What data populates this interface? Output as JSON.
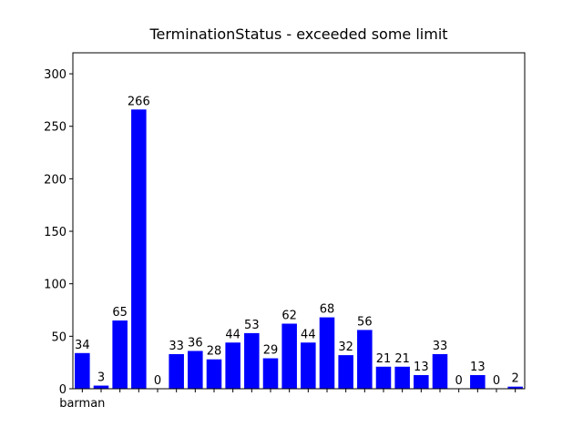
{
  "chart_data": {
    "type": "bar",
    "title": "TerminationStatus - exceeded some limit",
    "categories": [
      "barman",
      null,
      null,
      null,
      null,
      null,
      null,
      null,
      null,
      null,
      null,
      null,
      null,
      null,
      null,
      null,
      null,
      null,
      null,
      null,
      null,
      null,
      null,
      null
    ],
    "values": [
      34,
      3,
      65,
      266,
      0,
      33,
      36,
      28,
      44,
      53,
      29,
      62,
      44,
      68,
      32,
      56,
      21,
      21,
      13,
      33,
      0,
      13,
      0,
      2
    ],
    "color": "#0000ff",
    "ylim": [
      0,
      320
    ],
    "yticks": [
      0,
      50,
      100,
      150,
      200,
      250,
      300
    ],
    "grid": false
  }
}
